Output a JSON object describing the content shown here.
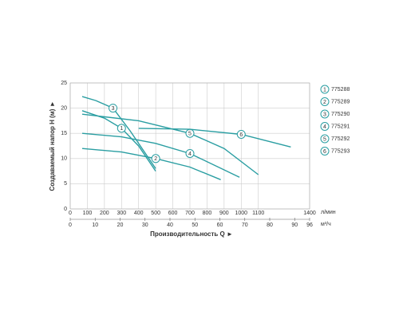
{
  "chart_data": {
    "type": "line",
    "xlabel": "Производительность Q ►",
    "ylabel": "Создаваемый напор H (м) ►",
    "x_unit": "л/мин",
    "x2_unit": "м³/ч",
    "xlim": [
      0,
      1400
    ],
    "xticks": [
      0,
      100,
      200,
      300,
      400,
      500,
      600,
      700,
      800,
      900,
      1000,
      1100,
      1400
    ],
    "x2lim": [
      0,
      96
    ],
    "x2ticks": [
      0,
      10,
      20,
      30,
      40,
      50,
      60,
      70,
      80,
      90,
      96
    ],
    "ylim": [
      0,
      25
    ],
    "yticks": [
      0,
      5,
      10,
      15,
      20,
      25
    ],
    "grid": true,
    "series": [
      {
        "name": "775288",
        "marker": "1",
        "color": "#2a9ea2",
        "x": [
          70,
          200,
          300,
          400,
          500
        ],
        "values": [
          19.5,
          18,
          16,
          12.5,
          7.5
        ]
      },
      {
        "name": "775289",
        "marker": "2",
        "color": "#2a9ea2",
        "x": [
          70,
          300,
          500,
          700,
          880
        ],
        "values": [
          12,
          11.3,
          10,
          8.3,
          5.8
        ]
      },
      {
        "name": "775290",
        "marker": "3",
        "color": "#2a9ea2",
        "x": [
          70,
          150,
          250,
          350,
          500
        ],
        "values": [
          22.3,
          21.5,
          20,
          15.5,
          8
        ]
      },
      {
        "name": "775291",
        "marker": "4",
        "color": "#2a9ea2",
        "x": [
          70,
          300,
          500,
          700,
          990
        ],
        "values": [
          15,
          14.3,
          13,
          11,
          6.3
        ]
      },
      {
        "name": "775292",
        "marker": "5",
        "color": "#2a9ea2",
        "x": [
          70,
          400,
          700,
          900,
          1100
        ],
        "values": [
          18.8,
          17.5,
          15,
          12,
          6.8
        ]
      },
      {
        "name": "775293",
        "marker": "6",
        "color": "#2a9ea2",
        "x": [
          400,
          700,
          1000,
          1290
        ],
        "values": [
          16,
          15.8,
          14.8,
          12.3
        ]
      }
    ]
  }
}
